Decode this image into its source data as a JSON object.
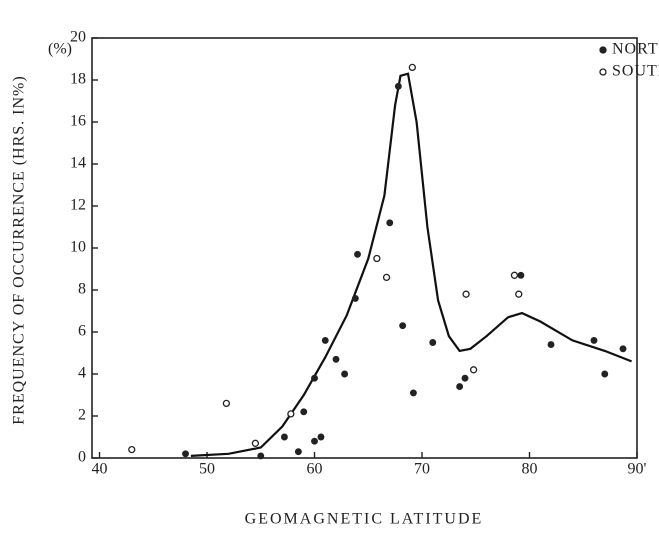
{
  "chart_data": {
    "type": "scatter",
    "x_label": "GEOMAGNETIC LATITUDE",
    "y_label": "FREQUENCY OF OCCURRENCE (HRS. IN%)",
    "y_unit": "(%)",
    "xlim": [
      39.3,
      90
    ],
    "ylim": [
      0,
      20
    ],
    "xticks": [
      40,
      50,
      60,
      70,
      80,
      {
        "value": 90,
        "label": "90'"
      }
    ],
    "yticks": [
      0,
      2,
      4,
      6,
      8,
      10,
      12,
      14,
      16,
      18,
      20
    ],
    "legend": "top-right",
    "series": [
      {
        "name": "NORTH",
        "color": "#222",
        "marker": "filled",
        "x": [
          48,
          55,
          57.2,
          58.5,
          59,
          60,
          60,
          60.6,
          61,
          62,
          62.8,
          63.8,
          64,
          67,
          67.8,
          68.2,
          69.2,
          71,
          73.5,
          74,
          79.2,
          82,
          86,
          87,
          88.7
        ],
        "values": [
          0.2,
          0.1,
          1.0,
          0.3,
          2.2,
          3.8,
          0.8,
          1.0,
          5.6,
          4.7,
          4.0,
          7.6,
          9.7,
          11.2,
          17.7,
          6.3,
          3.1,
          5.5,
          3.4,
          3.8,
          8.7,
          5.4,
          5.6,
          4.0,
          5.2
        ]
      },
      {
        "name": "SOUTH",
        "color": "#222",
        "marker": "open",
        "x": [
          43,
          51.8,
          54.5,
          57.8,
          65.8,
          66.7,
          69.1,
          74.1,
          74.8,
          78.6,
          79
        ],
        "values": [
          0.4,
          2.6,
          0.7,
          2.1,
          9.5,
          8.6,
          18.6,
          7.8,
          4.2,
          8.7,
          7.8
        ]
      }
    ],
    "curve": {
      "color": "#111",
      "x": [
        48.5,
        52,
        55,
        57,
        59,
        61,
        63,
        65,
        66.5,
        67.5,
        68,
        68.7,
        69.5,
        70.5,
        71.5,
        72.5,
        73.5,
        74.5,
        76,
        78,
        79.3,
        81,
        84,
        87,
        89.5
      ],
      "values": [
        0.1,
        0.2,
        0.5,
        1.5,
        3,
        4.8,
        6.8,
        9.5,
        12.5,
        16.8,
        18.2,
        18.3,
        16,
        11,
        7.5,
        5.8,
        5.1,
        5.2,
        5.8,
        6.7,
        6.9,
        6.5,
        5.6,
        5.1,
        4.6
      ]
    }
  }
}
